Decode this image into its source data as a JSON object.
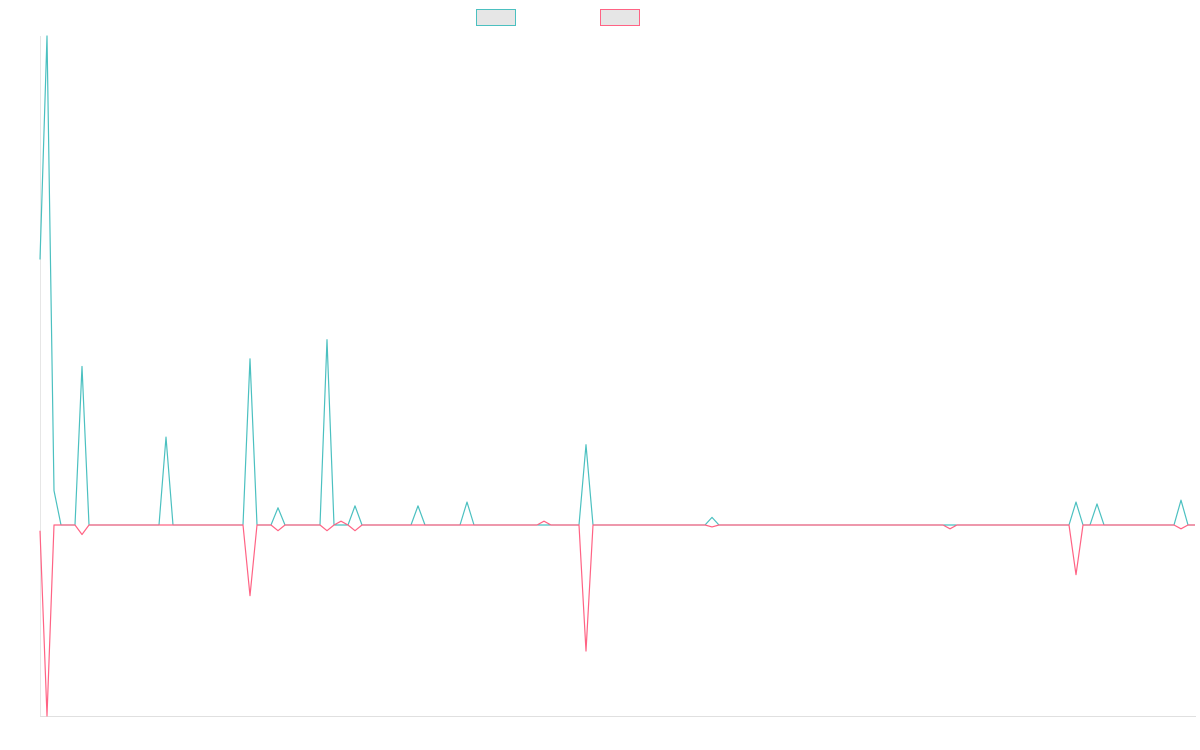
{
  "chart_data": {
    "type": "line",
    "ylim": [
      -100,
      256
    ],
    "swatch_fill": "#e6e6e6",
    "series": [
      {
        "color": "#4bc0c0",
        "values": [
          139,
          256,
          18,
          0,
          0,
          0,
          83,
          0,
          0,
          0,
          0,
          0,
          0,
          0,
          0,
          0,
          0,
          0,
          46,
          0,
          0,
          0,
          0,
          0,
          0,
          0,
          0,
          0,
          0,
          0,
          87,
          0,
          0,
          0,
          9,
          0,
          0,
          0,
          0,
          0,
          0,
          97,
          0,
          0,
          0,
          10,
          0,
          0,
          0,
          0,
          0,
          0,
          0,
          0,
          10,
          0,
          0,
          0,
          0,
          0,
          0,
          12,
          0,
          0,
          0,
          0,
          0,
          0,
          0,
          0,
          0,
          0,
          0,
          0,
          0,
          0,
          0,
          0,
          42,
          0,
          0,
          0,
          0,
          0,
          0,
          0,
          0,
          0,
          0,
          0,
          0,
          0,
          0,
          0,
          0,
          0,
          4,
          0,
          0,
          0,
          0,
          0,
          0,
          0,
          0,
          0,
          0,
          0,
          0,
          0,
          0,
          0,
          0,
          0,
          0,
          0,
          0,
          0,
          0,
          0,
          0,
          0,
          0,
          0,
          0,
          0,
          0,
          0,
          0,
          0,
          0,
          0,
          0,
          0,
          0,
          0,
          0,
          0,
          0,
          0,
          0,
          0,
          0,
          0,
          0,
          0,
          0,
          0,
          12,
          0,
          0,
          11,
          0,
          0,
          0,
          0,
          0,
          0,
          0,
          0,
          0,
          0,
          0,
          13,
          0,
          0
        ]
      },
      {
        "color": "#ff6384",
        "values": [
          -3,
          -100,
          0,
          0,
          0,
          0,
          -5,
          0,
          0,
          0,
          0,
          0,
          0,
          0,
          0,
          0,
          0,
          0,
          0,
          0,
          0,
          0,
          0,
          0,
          0,
          0,
          0,
          0,
          0,
          0,
          -37,
          0,
          0,
          0,
          -3,
          0,
          0,
          0,
          0,
          0,
          0,
          -3,
          0,
          2,
          0,
          -3,
          0,
          0,
          0,
          0,
          0,
          0,
          0,
          0,
          0,
          0,
          0,
          0,
          0,
          0,
          0,
          0,
          0,
          0,
          0,
          0,
          0,
          0,
          0,
          0,
          0,
          0,
          2,
          0,
          0,
          0,
          0,
          0,
          -66,
          0,
          0,
          0,
          0,
          0,
          0,
          0,
          0,
          0,
          0,
          0,
          0,
          0,
          0,
          0,
          0,
          0,
          -1,
          0,
          0,
          0,
          0,
          0,
          0,
          0,
          0,
          0,
          0,
          0,
          0,
          0,
          0,
          0,
          0,
          0,
          0,
          0,
          0,
          0,
          0,
          0,
          0,
          0,
          0,
          0,
          0,
          0,
          0,
          0,
          0,
          0,
          -2,
          0,
          0,
          0,
          0,
          0,
          0,
          0,
          0,
          0,
          0,
          0,
          0,
          0,
          0,
          0,
          0,
          0,
          -26,
          0,
          0,
          0,
          0,
          0,
          0,
          0,
          0,
          0,
          0,
          0,
          0,
          0,
          0,
          -2,
          0,
          0
        ]
      }
    ]
  }
}
